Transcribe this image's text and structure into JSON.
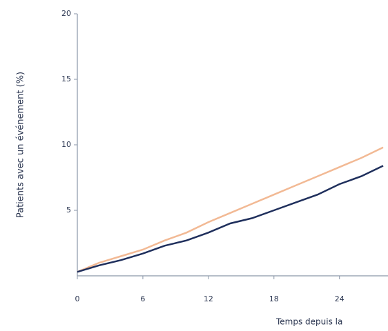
{
  "chart_data": {
    "type": "line",
    "y_label": "Patients avec un événement (%)",
    "x_label": "Temps depuis la",
    "x": [
      0,
      2,
      4,
      6,
      8,
      10,
      12,
      14,
      16,
      18,
      20,
      22,
      24,
      26,
      28
    ],
    "series": [
      {
        "color": "#f2b994",
        "values": [
          0.3,
          1.0,
          1.5,
          2.0,
          2.7,
          3.3,
          4.1,
          4.8,
          5.5,
          6.2,
          6.9,
          7.6,
          8.3,
          9.0,
          9.8
        ]
      },
      {
        "color": "#1f2f5c",
        "values": [
          0.3,
          0.8,
          1.2,
          1.7,
          2.3,
          2.7,
          3.3,
          4.0,
          4.4,
          5.0,
          5.6,
          6.2,
          7.0,
          7.6,
          8.4
        ]
      }
    ],
    "xlim": [
      0,
      28
    ],
    "xticks": [
      0,
      6,
      12,
      18,
      24
    ],
    "ylim": [
      0,
      20
    ],
    "yticks": [
      5,
      10,
      15,
      20
    ],
    "grid": false
  }
}
